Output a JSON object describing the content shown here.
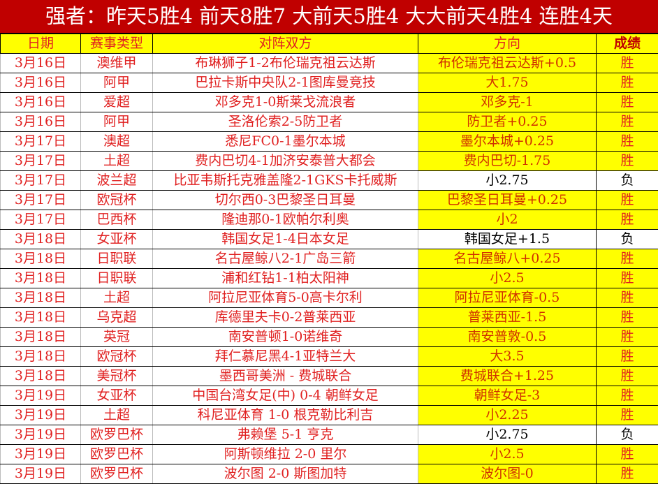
{
  "title": "强者：昨天5胜4 前天8胜7 大前天5胜4 大大前天4胜4 连胜4天",
  "headers": [
    "日期",
    "赛事类型",
    "对阵双方",
    "方向",
    "成绩"
  ],
  "colors": {
    "title_bg": "#c00000",
    "highlight": "#ffff00",
    "text": "#e02020"
  },
  "rows": [
    {
      "date": "3月16日",
      "league": "澳维甲",
      "match": "布琳狮子1-2布伦瑞克祖云达斯",
      "pick": "布伦瑞克祖云达斯+0.5",
      "result": "胜"
    },
    {
      "date": "3月16日",
      "league": "阿甲",
      "match": "巴拉卡斯中央队2-1图库曼竞技",
      "pick": "大1.75",
      "result": "胜"
    },
    {
      "date": "3月16日",
      "league": "爱超",
      "match": "邓多克1-0斯莱戈流浪者",
      "pick": "邓多克-1",
      "result": "胜"
    },
    {
      "date": "3月16日",
      "league": "阿甲",
      "match": "圣洛伦索2-5防卫者",
      "pick": "防卫者+0.25",
      "result": "胜"
    },
    {
      "date": "3月17日",
      "league": "澳超",
      "match": "悉尼FC0-1墨尔本城",
      "pick": "墨尔本城+0.25",
      "result": "胜"
    },
    {
      "date": "3月17日",
      "league": "土超",
      "match": "费内巴切4-1加济安泰普大都会",
      "pick": "费内巴切-1.75",
      "result": "胜"
    },
    {
      "date": "3月17日",
      "league": "波兰超",
      "match": "比亚韦斯托克雅盖隆2-1GKS卡托威斯",
      "pick": "小2.75",
      "result": "负"
    },
    {
      "date": "3月17日",
      "league": "欧冠杯",
      "match": "切尔西0-3巴黎圣日耳曼",
      "pick": "巴黎圣日耳曼+0.25",
      "result": "胜"
    },
    {
      "date": "3月17日",
      "league": "巴西杯",
      "match": "隆迪那0-1欧帕尔利奥",
      "pick": "小2",
      "result": "胜"
    },
    {
      "date": "3月18日",
      "league": "女亚杯",
      "match": "韩国女足1-4日本女足",
      "pick": "韩国女足+1.5",
      "result": "负"
    },
    {
      "date": "3月18日",
      "league": "日职联",
      "match": "名古屋鲸八2-1广岛三箭",
      "pick": "名古屋鲸八+0.25",
      "result": "胜"
    },
    {
      "date": "3月18日",
      "league": "日职联",
      "match": "浦和红钻1-1柏太阳神",
      "pick": "小2.5",
      "result": "胜"
    },
    {
      "date": "3月18日",
      "league": "土超",
      "match": "阿拉尼亚体育5-0高卡尔利",
      "pick": "阿拉尼亚体育-0.5",
      "result": "胜"
    },
    {
      "date": "3月18日",
      "league": "乌克超",
      "match": "库德里夫卡0-2普莱西亚",
      "pick": "普莱西亚-1.5",
      "result": "胜"
    },
    {
      "date": "3月18日",
      "league": "英冠",
      "match": "南安普顿1-0诺维奇",
      "pick": "南安普敦-0.5",
      "result": "胜"
    },
    {
      "date": "3月18日",
      "league": "欧冠杯",
      "match": "拜仁慕尼黑4-1亚特兰大",
      "pick": "大3.5",
      "result": "胜"
    },
    {
      "date": "3月18日",
      "league": "美冠杯",
      "match": "墨西哥美洲 - 费城联合",
      "pick": "费城联合+1.25",
      "result": "胜"
    },
    {
      "date": "3月19日",
      "league": "女亚杯",
      "match": "中国台湾女足(中) 0-4 朝鲜女足",
      "pick": "朝鲜女足-3",
      "result": "胜"
    },
    {
      "date": "3月19日",
      "league": "土超",
      "match": "科尼亚体育 1-0 根克勒比利吉",
      "pick": "小2.25",
      "result": "胜"
    },
    {
      "date": "3月19日",
      "league": "欧罗巴杯",
      "match": "弗赖堡 5-1 亨克",
      "pick": "小2.75",
      "result": "负"
    },
    {
      "date": "3月19日",
      "league": "欧罗巴杯",
      "match": "阿斯顿维拉 2-0 里尔",
      "pick": "小2.5",
      "result": "胜"
    },
    {
      "date": "3月19日",
      "league": "欧罗巴杯",
      "match": "波尔图 2-0 斯图加特",
      "pick": "波尔图-0",
      "result": "胜"
    }
  ]
}
